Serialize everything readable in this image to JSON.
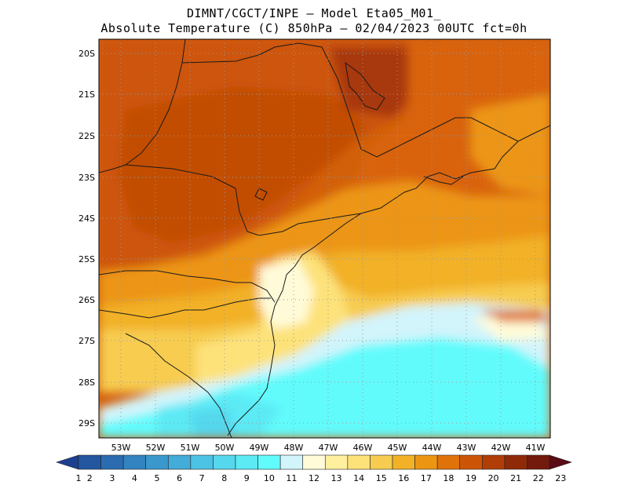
{
  "title_line1": "DIMNT/CGCT/INPE –  Model Eta05_M01_",
  "title_line2": "Absolute Temperature (C) 850hPa –  02/04/2023 00UTC fct=0h",
  "lat_labels": [
    "20S",
    "21S",
    "22S",
    "23S",
    "24S",
    "25S",
    "26S",
    "27S",
    "28S",
    "29S"
  ],
  "lon_labels": [
    "53W",
    "52W",
    "51W",
    "50W",
    "49W",
    "48W",
    "47W",
    "46W",
    "45W",
    "44W",
    "43W",
    "42W",
    "41W"
  ],
  "colorbar": {
    "labels": [
      "1",
      "2",
      "3",
      "4",
      "5",
      "6",
      "7",
      "8",
      "9",
      "10",
      "11",
      "12",
      "13",
      "14",
      "15",
      "16",
      "17",
      "18",
      "19",
      "20",
      "21",
      "22",
      "23"
    ],
    "colors": [
      "#1c3f8f",
      "#2456a0",
      "#2b6cb0",
      "#3283c0",
      "#3a98cc",
      "#43acd8",
      "#4cc3e4",
      "#55d7ee",
      "#5ceaf5",
      "#62fbfc",
      "#d2f4fb",
      "#fffbd8",
      "#fff0a0",
      "#fde27a",
      "#f7cc50",
      "#f2b126",
      "#ec9512",
      "#e0720a",
      "#cd5508",
      "#b03e06",
      "#8f2a08",
      "#741a0c",
      "#5a0b14"
    ]
  }
}
